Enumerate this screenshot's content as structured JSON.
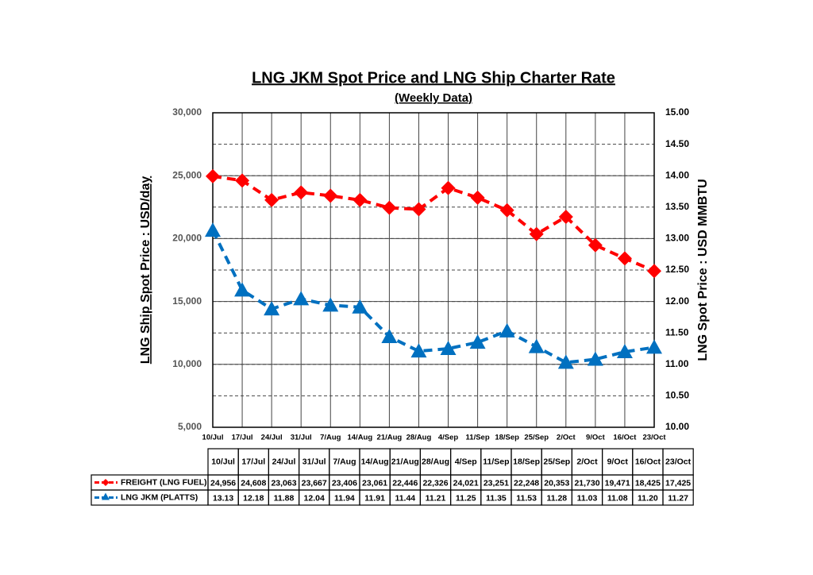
{
  "chart_data": {
    "type": "line",
    "title": "LNG JKM Spot Price and LNG Ship Charter Rate",
    "subtitle": "(Weekly Data)",
    "y_label": "LNG Ship Spot Price : USD/day",
    "y2_label": "LNG Spot Price : USD MMBTU",
    "categories": [
      "10/Jul",
      "17/Jul",
      "24/Jul",
      "31/Jul",
      "7/Aug",
      "14/Aug",
      "21/Aug",
      "28/Aug",
      "4/Sep",
      "11/Sep",
      "18/Sep",
      "25/Sep",
      "2/Oct",
      "9/Oct",
      "16/Oct",
      "23/Oct"
    ],
    "ylim": [
      5000,
      30000
    ],
    "yticks": [
      {
        "value": 5000,
        "label": "5,000"
      },
      {
        "value": 10000,
        "label": "10,000"
      },
      {
        "value": 15000,
        "label": "15,000"
      },
      {
        "value": 20000,
        "label": "20,000"
      },
      {
        "value": 25000,
        "label": "25,000"
      },
      {
        "value": 30000,
        "label": "30,000"
      }
    ],
    "y2lim": [
      10,
      15
    ],
    "y2ticks": [
      {
        "value": 10,
        "label": "10.00"
      },
      {
        "value": 10.5,
        "label": "10.50"
      },
      {
        "value": 11,
        "label": "11.00"
      },
      {
        "value": 11.5,
        "label": "11.50"
      },
      {
        "value": 12,
        "label": "12.00"
      },
      {
        "value": 12.5,
        "label": "12.50"
      },
      {
        "value": 13,
        "label": "13.00"
      },
      {
        "value": 13.5,
        "label": "13.50"
      },
      {
        "value": 14,
        "label": "14.00"
      },
      {
        "value": 14.5,
        "label": "14.50"
      },
      {
        "value": 15,
        "label": "15.00"
      }
    ],
    "grid": true,
    "series": [
      {
        "name": "FREIGHT (LNG FUEL)",
        "color": "#ff0000",
        "marker": "diamond",
        "values": [
          24956,
          24608,
          23063,
          23667,
          23406,
          23061,
          22446,
          22326,
          24021,
          23251,
          22248,
          20353,
          21730,
          19471,
          18425,
          17425
        ],
        "value_labels": [
          "24,956",
          "24,608",
          "23,063",
          "23,667",
          "23,406",
          "23,061",
          "22,446",
          "22,326",
          "24,021",
          "23,251",
          "22,248",
          "20,353",
          "21,730",
          "19,471",
          "18,425",
          "17,425"
        ]
      },
      {
        "name": "LNG JKM (PLATTS)",
        "color": "#0070c0",
        "marker": "triangle",
        "axis": "y2",
        "values": [
          13.13,
          12.18,
          11.88,
          12.04,
          11.94,
          11.91,
          11.44,
          11.21,
          11.25,
          11.35,
          11.53,
          11.28,
          11.03,
          11.08,
          11.2,
          11.27
        ],
        "value_labels": [
          "13.13",
          "12.18",
          "11.88",
          "12.04",
          "11.94",
          "11.91",
          "11.44",
          "11.21",
          "11.25",
          "11.35",
          "11.53",
          "11.28",
          "11.03",
          "11.08",
          "11.20",
          "11.27"
        ]
      }
    ]
  }
}
